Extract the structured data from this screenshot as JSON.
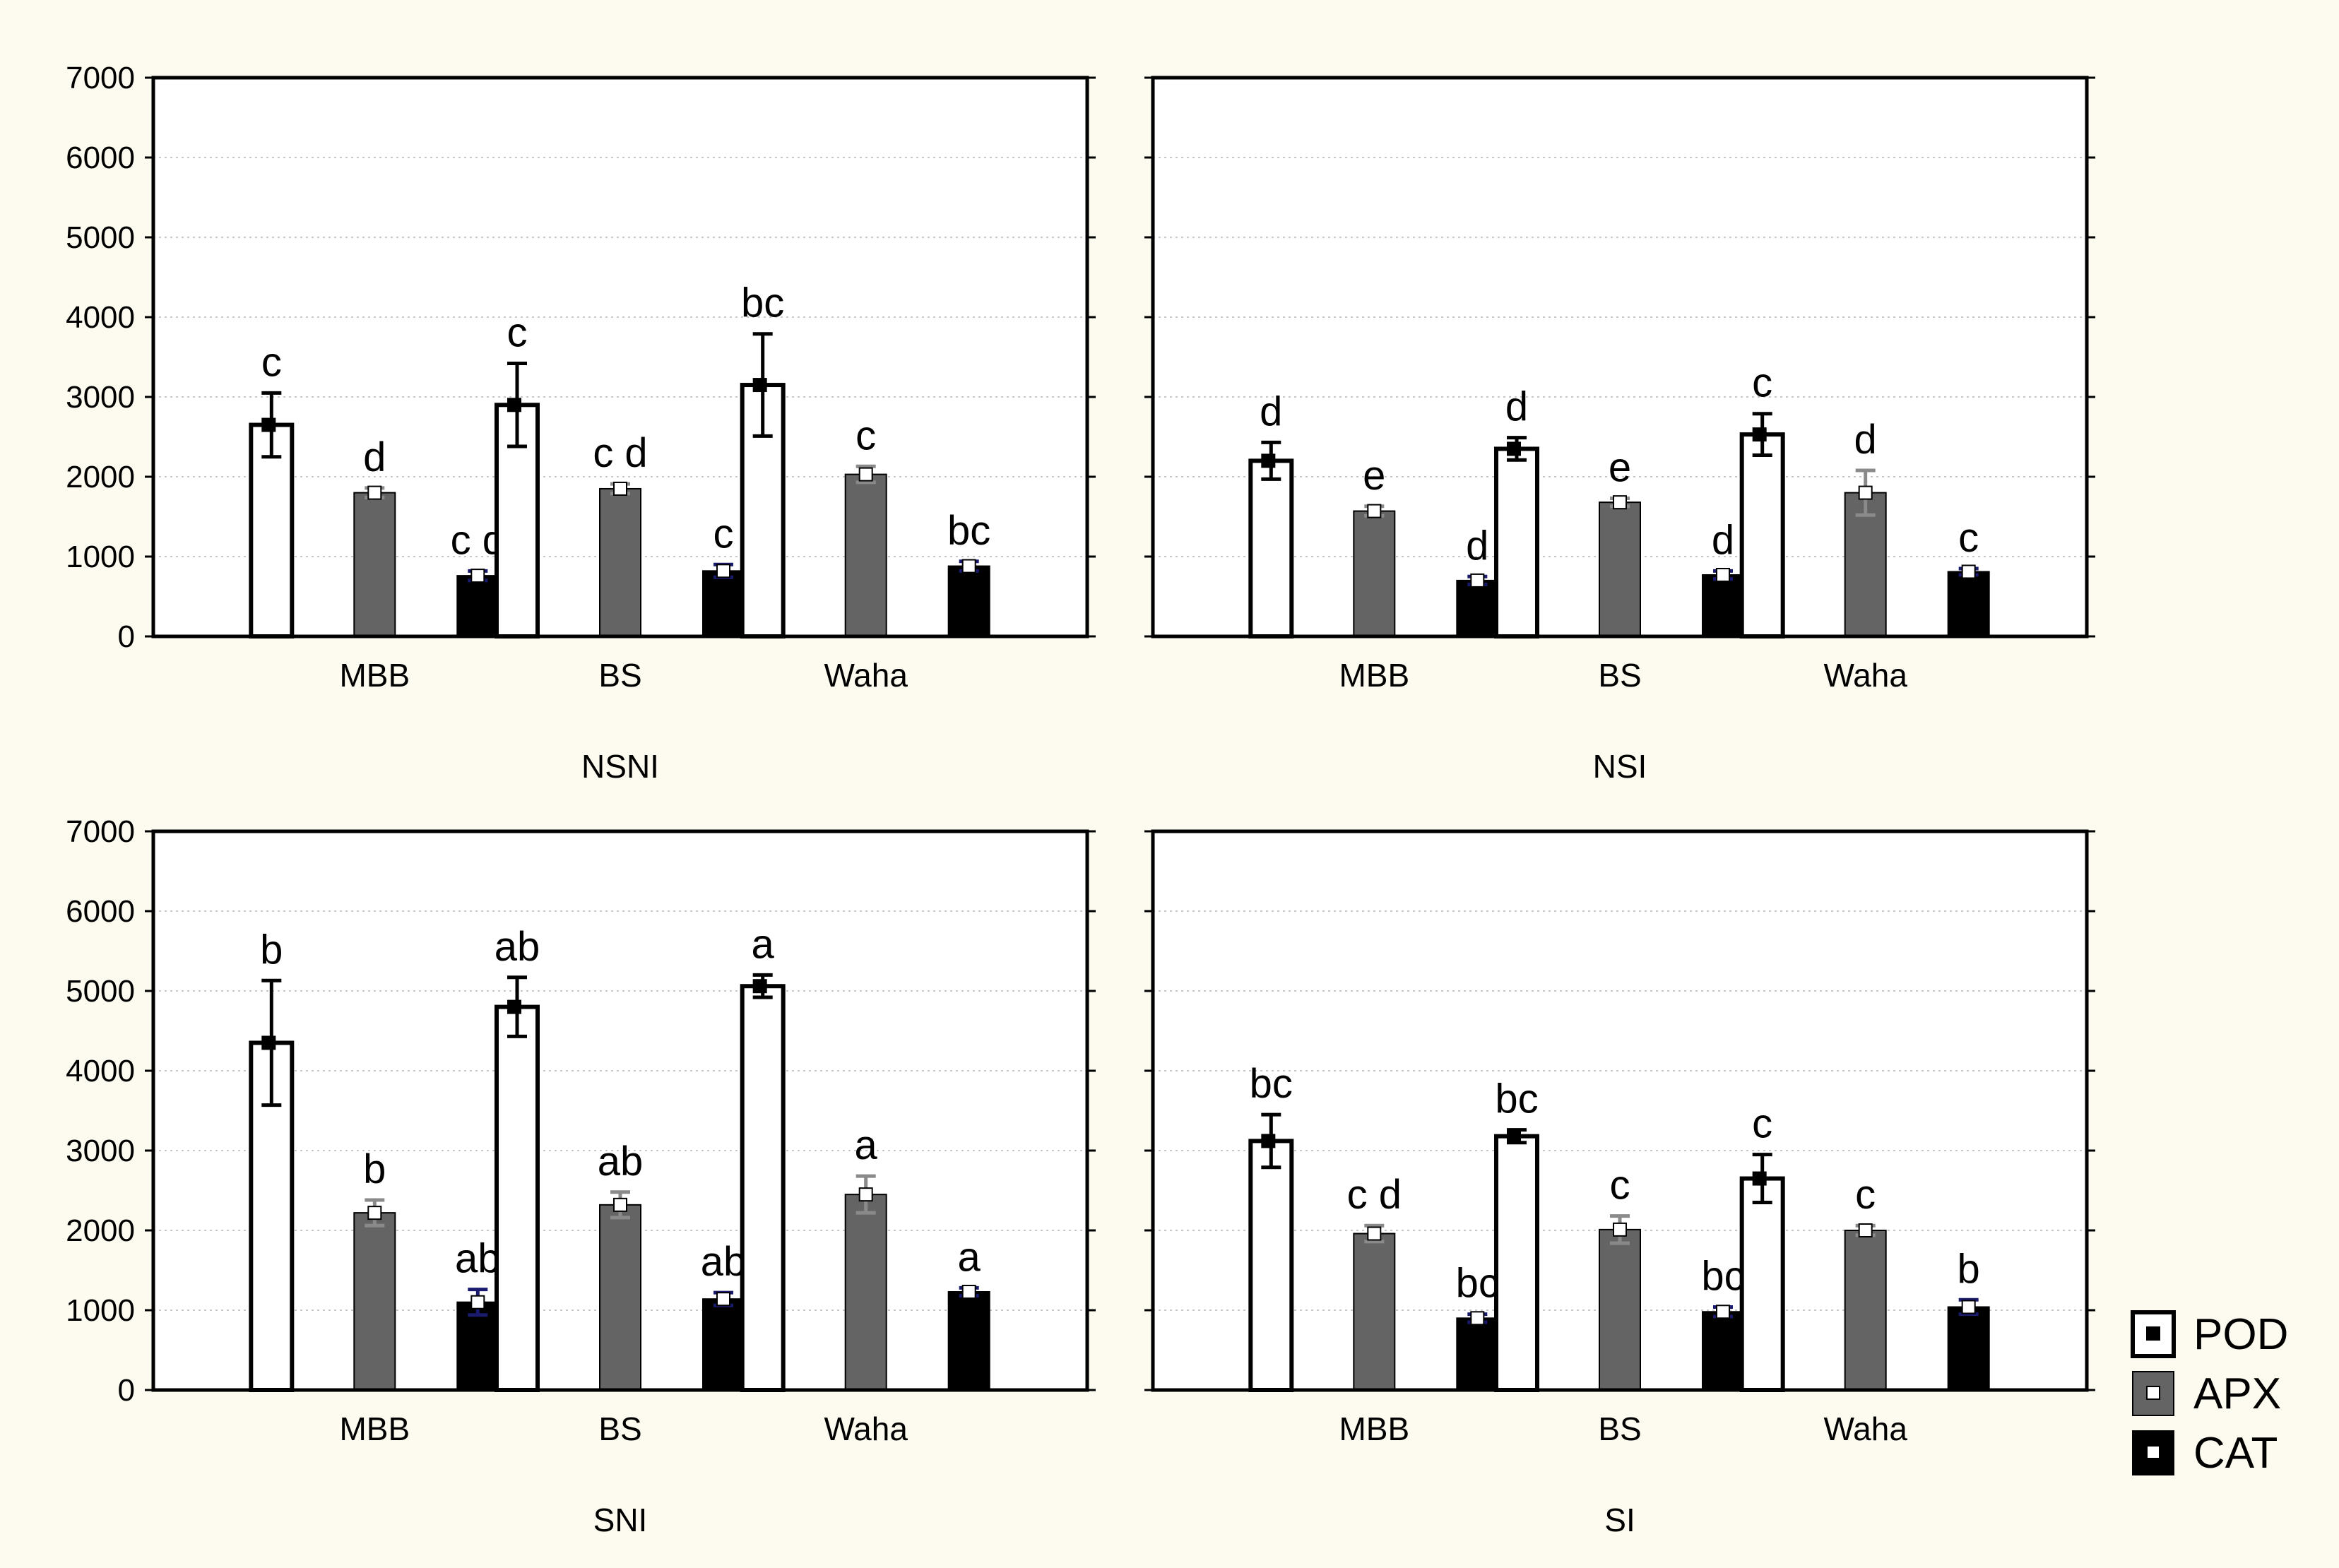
{
  "colors": {
    "background": "#fdfbef",
    "plot_background": "#ffffff",
    "POD": "#ffffff",
    "APX": "#646464",
    "CAT": "#000000",
    "gridline": "#c8c8c8",
    "axis": "#000000"
  },
  "legend": {
    "position": "bottom-right",
    "items": [
      {
        "label": "POD",
        "series": "POD"
      },
      {
        "label": "APX",
        "series": "APX"
      },
      {
        "label": "CAT",
        "series": "CAT"
      }
    ]
  },
  "chart_data": [
    {
      "type": "bar",
      "title": "NSNI",
      "ylim": [
        0,
        7000
      ],
      "yticks": [
        "0",
        "1000",
        "2000",
        "3000",
        "4000",
        "5000",
        "6000",
        "7000"
      ],
      "show_yticklabels": true,
      "categories": [
        "MBB",
        "BS",
        "Waha"
      ],
      "series": [
        {
          "name": "POD",
          "values": [
            2650,
            2900,
            3150
          ],
          "errors": [
            400,
            520,
            640
          ],
          "labels": [
            "c",
            "c",
            "bc"
          ]
        },
        {
          "name": "APX",
          "values": [
            1800,
            1850,
            2030
          ],
          "errors": [
            60,
            60,
            100
          ],
          "labels": [
            "d",
            "c d",
            "c"
          ]
        },
        {
          "name": "CAT",
          "values": [
            760,
            820,
            880
          ],
          "errors": [
            60,
            80,
            60
          ],
          "labels": [
            "c d",
            "c",
            "bc"
          ]
        }
      ]
    },
    {
      "type": "bar",
      "title": "NSI",
      "ylim": [
        0,
        7000
      ],
      "yticks": [
        "0",
        "1000",
        "2000",
        "3000",
        "4000",
        "5000",
        "6000",
        "7000"
      ],
      "show_yticklabels": false,
      "categories": [
        "MBB",
        "BS",
        "Waha"
      ],
      "series": [
        {
          "name": "POD",
          "values": [
            2200,
            2350,
            2530
          ],
          "errors": [
            230,
            140,
            260
          ],
          "labels": [
            "d",
            "d",
            "c"
          ]
        },
        {
          "name": "APX",
          "values": [
            1570,
            1680,
            1800
          ],
          "errors": [
            60,
            50,
            280
          ],
          "labels": [
            "e",
            "e",
            "d"
          ]
        },
        {
          "name": "CAT",
          "values": [
            700,
            770,
            810
          ],
          "errors": [
            50,
            50,
            40
          ],
          "labels": [
            "d",
            "d",
            "c"
          ]
        }
      ]
    },
    {
      "type": "bar",
      "title": "SNI",
      "ylim": [
        0,
        7000
      ],
      "yticks": [
        "0",
        "1000",
        "2000",
        "3000",
        "4000",
        "5000",
        "6000",
        "7000"
      ],
      "show_yticklabels": true,
      "categories": [
        "MBB",
        "BS",
        "Waha"
      ],
      "series": [
        {
          "name": "POD",
          "values": [
            4350,
            4800,
            5060
          ],
          "errors": [
            780,
            370,
            140
          ],
          "labels": [
            "b",
            "ab",
            "a"
          ]
        },
        {
          "name": "APX",
          "values": [
            2220,
            2320,
            2450
          ],
          "errors": [
            160,
            160,
            230
          ],
          "labels": [
            "b",
            "ab",
            "a"
          ]
        },
        {
          "name": "CAT",
          "values": [
            1100,
            1140,
            1230
          ],
          "errors": [
            160,
            80,
            50
          ],
          "labels": [
            "ab",
            "ab",
            "a"
          ]
        }
      ]
    },
    {
      "type": "bar",
      "title": "SI",
      "ylim": [
        0,
        7000
      ],
      "yticks": [
        "0",
        "1000",
        "2000",
        "3000",
        "4000",
        "5000",
        "6000",
        "7000"
      ],
      "show_yticklabels": false,
      "categories": [
        "MBB",
        "BS",
        "Waha"
      ],
      "series": [
        {
          "name": "POD",
          "values": [
            3120,
            3180,
            2650
          ],
          "errors": [
            330,
            80,
            300
          ],
          "labels": [
            "bc",
            "bc",
            "c"
          ]
        },
        {
          "name": "APX",
          "values": [
            1960,
            2010,
            2000
          ],
          "errors": [
            100,
            170,
            60
          ],
          "labels": [
            "c d",
            "c",
            "c"
          ]
        },
        {
          "name": "CAT",
          "values": [
            900,
            980,
            1040
          ],
          "errors": [
            50,
            60,
            90
          ],
          "labels": [
            "bc",
            "bc",
            "b"
          ]
        }
      ]
    }
  ]
}
